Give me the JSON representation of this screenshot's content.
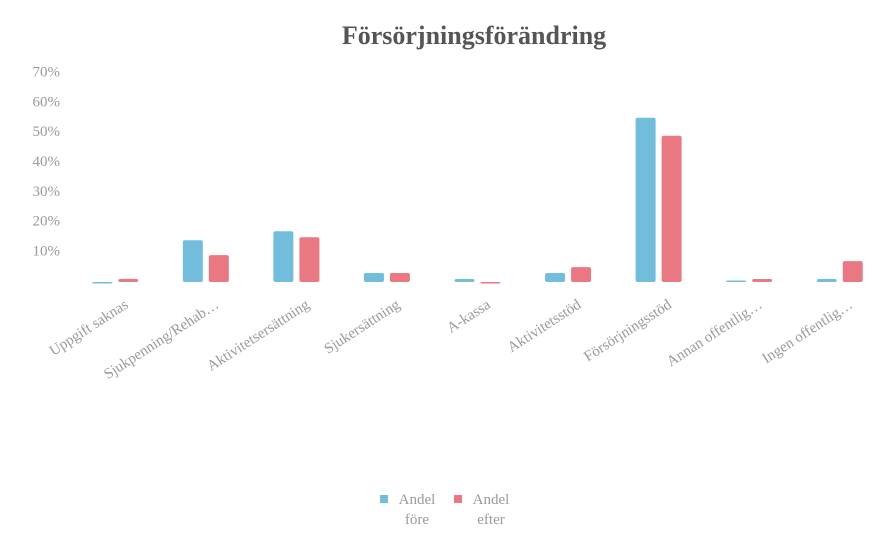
{
  "chart_data": {
    "type": "bar",
    "title": "Försörjningsförändring",
    "categories": [
      "Uppgift saknas",
      "Sjukpenning/Rehab…",
      "Aktivitetsersättning",
      "Sjukersättning",
      "A-kassa",
      "Aktivitetsstöd",
      "Försörjningsstöd",
      "Annan offentlig…",
      "Ingen offentlig…"
    ],
    "series": [
      {
        "name": "Andel före",
        "color": "#72bddb",
        "values": [
          0,
          14,
          17,
          3,
          1,
          3,
          55,
          0.5,
          1
        ]
      },
      {
        "name": "Andel efter",
        "color": "#ea7883",
        "values": [
          1,
          9,
          15,
          3,
          0,
          5,
          49,
          1,
          7
        ]
      }
    ],
    "ylim": [
      0,
      70
    ],
    "yticks": [
      {
        "value": 10,
        "label": "10%"
      },
      {
        "value": 20,
        "label": "20%"
      },
      {
        "value": 30,
        "label": "30%"
      },
      {
        "value": 40,
        "label": "40%"
      },
      {
        "value": 50,
        "label": "50%"
      },
      {
        "value": 60,
        "label": "60%"
      },
      {
        "value": 70,
        "label": "70%"
      }
    ],
    "grid": false,
    "legend": "bottom"
  }
}
